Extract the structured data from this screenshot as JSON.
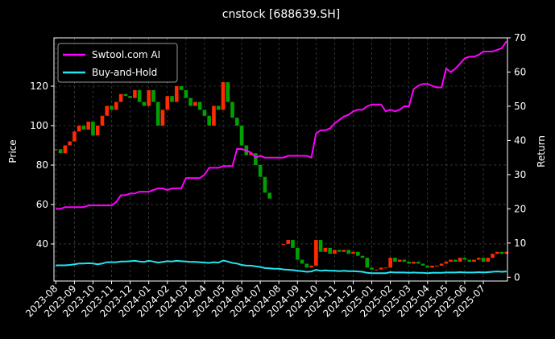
{
  "chart_data": {
    "type": "candle-line",
    "title": "cnstock [688639.SH]",
    "y_label": "Price",
    "y2_label": "Return",
    "xticks": [
      "2023-08",
      "2023-09",
      "2023-10",
      "2023-11",
      "2023-12",
      "2024-01",
      "2024-02",
      "2024-03",
      "2024-04",
      "2024-05",
      "2024-06",
      "2024-07",
      "2024-08",
      "2024-09",
      "2024-10",
      "2024-11",
      "2024-12",
      "2025-01",
      "2025-02",
      "2025-03",
      "2025-04",
      "2025-05",
      "2025-06",
      "2025-07"
    ],
    "ylim": [
      21.2,
      144.5
    ],
    "yticks": [
      40,
      60,
      80,
      100,
      120
    ],
    "y2lim": [
      -1.1,
      70
    ],
    "y2ticks": [
      0,
      10,
      20,
      30,
      40,
      50,
      60,
      70
    ],
    "grid": true,
    "legend": "upper left",
    "price": {
      "up_color": "#ff2a00",
      "down_color": "#00a000",
      "values": [
        88,
        86,
        90,
        92,
        97,
        100,
        98,
        102,
        95,
        100,
        105,
        110,
        108,
        112,
        116,
        115,
        114,
        118,
        112,
        110,
        118,
        112,
        100,
        108,
        115,
        112,
        120,
        118,
        114,
        110,
        112,
        108,
        105,
        100,
        110,
        108,
        122,
        112,
        104,
        100,
        90,
        85,
        86,
        80,
        74,
        66,
        63,
        null,
        null,
        40,
        42,
        38,
        32,
        30,
        28,
        29,
        42,
        36,
        38,
        35,
        37,
        36,
        37,
        35,
        36,
        34,
        33,
        28,
        27,
        27,
        28,
        28,
        33,
        31,
        32,
        31,
        30,
        31,
        30,
        29,
        28,
        29,
        29,
        30,
        31,
        32,
        31,
        33,
        32,
        31,
        32,
        33,
        31,
        33,
        35,
        36,
        35,
        36
      ]
    },
    "series": [
      {
        "name": "Swtool.com AI",
        "color": "#ff00ff",
        "axis": "y2",
        "values": [
          20,
          20,
          20.5,
          20.5,
          20.5,
          20.5,
          20.5,
          21,
          21,
          21,
          21,
          21,
          21,
          22,
          24,
          24,
          24.5,
          24.5,
          25,
          25,
          25,
          25.5,
          26,
          26,
          25.5,
          26,
          26,
          26,
          29,
          29,
          29,
          29,
          30,
          32,
          32,
          32,
          32.5,
          32.5,
          32.5,
          37.5,
          37.5,
          37,
          36.5,
          35,
          35.5,
          35,
          35,
          35,
          35,
          35,
          35.5,
          35.5,
          35.5,
          35.5,
          35.5,
          35,
          42,
          43,
          43,
          43.5,
          45,
          46,
          47,
          47.5,
          48.5,
          49,
          49,
          50,
          50.5,
          50.5,
          50.5,
          48.5,
          49,
          48.5,
          49,
          50,
          50,
          55,
          56,
          56.5,
          56.5,
          56,
          55.5,
          55.5,
          61,
          60,
          61,
          62.5,
          64,
          64.5,
          64.5,
          65,
          66,
          66,
          66,
          66.5,
          67,
          69
        ]
      },
      {
        "name": "Buy-and-Hold",
        "color": "#22e5f0",
        "axis": "y2",
        "values": [
          3.5,
          3.5,
          3.5,
          3.6,
          3.8,
          4,
          4,
          4.1,
          4,
          3.8,
          4,
          4.4,
          4.4,
          4.4,
          4.6,
          4.6,
          4.7,
          4.8,
          4.6,
          4.5,
          4.8,
          4.6,
          4.3,
          4.5,
          4.7,
          4.6,
          4.8,
          4.7,
          4.6,
          4.5,
          4.5,
          4.4,
          4.3,
          4.2,
          4.4,
          4.3,
          4.9,
          4.6,
          4.2,
          4,
          3.6,
          3.4,
          3.4,
          3.2,
          3,
          2.7,
          2.6,
          2.5,
          2.5,
          2.3,
          2.2,
          2.1,
          1.9,
          1.8,
          1.6,
          1.7,
          2.2,
          1.9,
          2,
          1.9,
          1.9,
          1.8,
          1.9,
          1.8,
          1.8,
          1.7,
          1.6,
          1.3,
          1.2,
          1.2,
          1.2,
          1.2,
          1.5,
          1.4,
          1.4,
          1.4,
          1.3,
          1.4,
          1.3,
          1.3,
          1.2,
          1.3,
          1.3,
          1.3,
          1.4,
          1.4,
          1.4,
          1.5,
          1.4,
          1.4,
          1.4,
          1.5,
          1.4,
          1.5,
          1.6,
          1.7,
          1.6,
          1.7
        ]
      }
    ]
  }
}
